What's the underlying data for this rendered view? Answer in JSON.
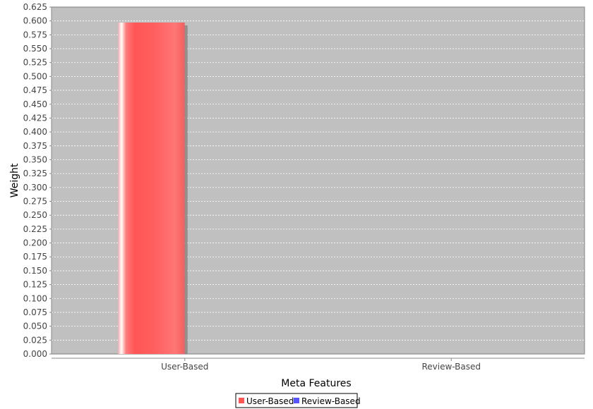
{
  "chart_data": {
    "type": "bar",
    "title": "",
    "xlabel": "Meta Features",
    "ylabel": "Weight",
    "categories": [
      "User-Based",
      "Review-Based"
    ],
    "series": [
      {
        "name": "User-Based",
        "color": "#ff5555",
        "values": [
          0.597,
          null
        ]
      },
      {
        "name": "Review-Based",
        "color": "#5555ff",
        "values": [
          null,
          null
        ]
      }
    ],
    "ylim": [
      0,
      0.625
    ],
    "ytick_step": 0.025,
    "grid": true,
    "legend_position": "bottom-center",
    "plot_background": "#c0c0c0"
  }
}
